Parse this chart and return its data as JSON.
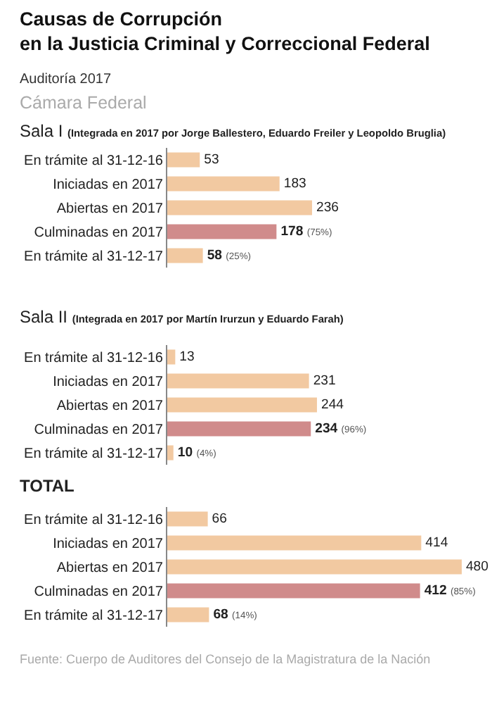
{
  "chart_data": [
    {
      "type": "bar",
      "orientation": "horizontal",
      "title": "Causas de Corrupción\nen la Justicia Criminal y Correccional Federal",
      "subtitle": "Auditoría 2017",
      "annotations": [
        "Cámara Federal",
        "Sala I (Integrada en 2017 por Jorge Ballestero, Eduardo Freiler y Leopoldo Bruglia)"
      ],
      "categories": [
        "En trámite al 31-12-16",
        "Iniciadas en 2017",
        "Abiertas en 2017",
        "Culminadas en 2017",
        "En trámite al 31-12-17"
      ],
      "values": [
        53,
        183,
        236,
        178,
        58
      ],
      "value_labels": [
        "53",
        "183",
        "236",
        "178 (75%)",
        "58 (25%)"
      ],
      "colors": [
        "#f2c9a1",
        "#f2c9a1",
        "#f2c9a1",
        "#d08b8b",
        "#f2c9a1"
      ],
      "tick_labels": "y"
    },
    {
      "type": "bar",
      "orientation": "horizontal",
      "title": "Sala II (Integrada en 2017 por Martín Irurzun y Eduardo Farah)",
      "categories": [
        "En trámite al 31-12-16",
        "Iniciadas en 2017",
        "Abiertas en 2017",
        "Culminadas en 2017",
        "En trámite al 31-12-17"
      ],
      "values": [
        13,
        231,
        244,
        234,
        10
      ],
      "value_labels": [
        "13",
        "231",
        "244",
        "234 (96%)",
        "10 (4%)"
      ],
      "colors": [
        "#f2c9a1",
        "#f2c9a1",
        "#f2c9a1",
        "#d08b8b",
        "#f2c9a1"
      ],
      "tick_labels": "y"
    },
    {
      "type": "bar",
      "orientation": "horizontal",
      "title": "TOTAL",
      "annotations": [
        "Fuente: Cuerpo de Auditores del Consejo de la Magistratura de la Nación"
      ],
      "categories": [
        "En trámite al 31-12-16",
        "Iniciadas en 2017",
        "Abiertas en 2017",
        "Culminadas en 2017",
        "En trámite al 31-12-17"
      ],
      "values": [
        66,
        414,
        480,
        412,
        68
      ],
      "value_labels": [
        "66",
        "414",
        "480",
        "412 (85%)",
        "68 (14%)"
      ],
      "colors": [
        "#f2c9a1",
        "#f2c9a1",
        "#f2c9a1",
        "#d08b8b",
        "#f2c9a1"
      ],
      "tick_labels": "y"
    }
  ]
}
